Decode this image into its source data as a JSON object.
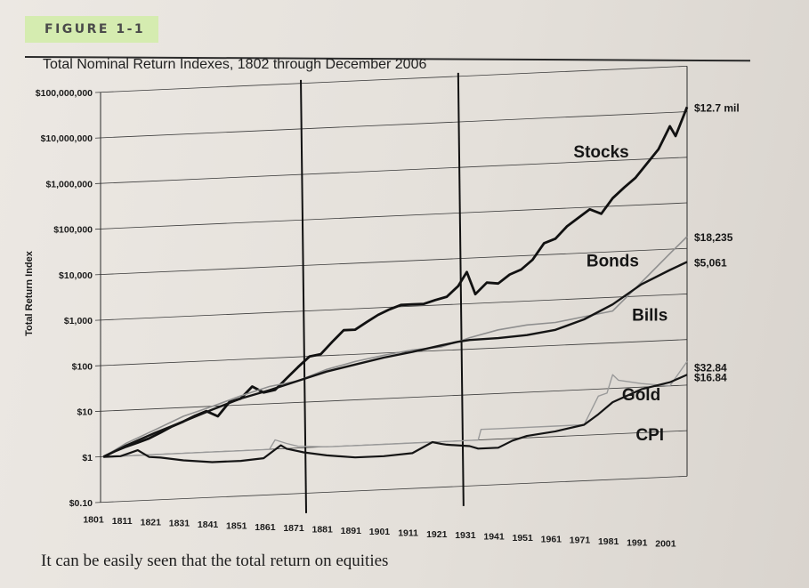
{
  "figure_label": "FIGURE 1-1",
  "caption": "It can be easily seen that the total return on equities",
  "chart_data": {
    "type": "line",
    "title": "Total Nominal Return Indexes, 1802 through December 2006",
    "ylabel": "Total Return Index",
    "xlabel": "",
    "y_scale": "log",
    "ylim": [
      0.1,
      100000000
    ],
    "xlim": [
      1801,
      2006
    ],
    "y_ticks": [
      "$100,000,000",
      "$10,000,000",
      "$1,000,000",
      "$100,000",
      "$10,000",
      "$1,000",
      "$100",
      "$10",
      "$1",
      "$0.10"
    ],
    "y_tick_values": [
      100000000,
      10000000,
      1000000,
      100000,
      10000,
      1000,
      100,
      10,
      1,
      0.1
    ],
    "x_ticks": [
      "1801",
      "1811",
      "1821",
      "1831",
      "1841",
      "1851",
      "1861",
      "1871",
      "1881",
      "1891",
      "1901",
      "1911",
      "1921",
      "1931",
      "1941",
      "1951",
      "1961",
      "1971",
      "1981",
      "1991",
      "2001"
    ],
    "x_tick_values": [
      1801,
      1811,
      1821,
      1831,
      1841,
      1851,
      1861,
      1871,
      1881,
      1891,
      1901,
      1911,
      1921,
      1931,
      1941,
      1951,
      1961,
      1971,
      1981,
      1991,
      2001
    ],
    "vertical_markers": [
      1871,
      1926
    ],
    "grid": true,
    "series": [
      {
        "name": "Stocks",
        "end_label": "$12.7 mil",
        "color": "#111111",
        "x": [
          1802,
          1806,
          1810,
          1814,
          1818,
          1822,
          1826,
          1830,
          1834,
          1838,
          1842,
          1846,
          1850,
          1854,
          1858,
          1862,
          1866,
          1870,
          1874,
          1878,
          1882,
          1886,
          1890,
          1894,
          1898,
          1902,
          1906,
          1910,
          1914,
          1918,
          1922,
          1926,
          1929,
          1932,
          1936,
          1940,
          1944,
          1948,
          1952,
          1956,
          1960,
          1964,
          1968,
          1972,
          1976,
          1980,
          1984,
          1988,
          1992,
          1996,
          2000,
          2002,
          2006
        ],
        "y": [
          1,
          1.3,
          1.6,
          1.9,
          2.3,
          3,
          4,
          5,
          6.5,
          8,
          6,
          12,
          14,
          25,
          18,
          20,
          35,
          60,
          100,
          110,
          200,
          350,
          350,
          500,
          700,
          900,
          1100,
          1100,
          1100,
          1300,
          1500,
          2500,
          5000,
          1600,
          2800,
          2600,
          4000,
          5000,
          8000,
          18000,
          22000,
          40000,
          60000,
          90000,
          70000,
          150000,
          250000,
          400000,
          800000,
          1600000,
          5000000,
          3000000,
          12700000
        ]
      },
      {
        "name": "Bonds",
        "end_label": "$18,235",
        "color": "#8f8f8f",
        "x": [
          1802,
          1810,
          1820,
          1830,
          1840,
          1850,
          1860,
          1870,
          1880,
          1890,
          1900,
          1910,
          1920,
          1926,
          1930,
          1940,
          1950,
          1960,
          1970,
          1980,
          1990,
          2000,
          2006
        ],
        "y": [
          1,
          1.9,
          3.5,
          6.5,
          10,
          16,
          24,
          30,
          50,
          70,
          90,
          110,
          120,
          150,
          180,
          250,
          300,
          320,
          400,
          500,
          2000,
          8000,
          18235
        ]
      },
      {
        "name": "Bills",
        "end_label": "$5,061",
        "color": "#151515",
        "x": [
          1802,
          1810,
          1820,
          1830,
          1840,
          1850,
          1860,
          1870,
          1880,
          1890,
          1900,
          1910,
          1920,
          1926,
          1930,
          1940,
          1950,
          1960,
          1970,
          1980,
          1990,
          2000,
          2006
        ],
        "y": [
          1,
          1.7,
          3,
          5,
          8.5,
          14,
          20,
          30,
          45,
          60,
          80,
          100,
          130,
          150,
          160,
          165,
          180,
          220,
          350,
          700,
          1800,
          3500,
          5061
        ]
      },
      {
        "name": "Gold",
        "end_label": "$32.84",
        "color": "#9a9a9a",
        "x": [
          1802,
          1810,
          1820,
          1830,
          1840,
          1850,
          1860,
          1862,
          1866,
          1870,
          1880,
          1890,
          1900,
          1910,
          1920,
          1930,
          1933,
          1934,
          1940,
          1950,
          1960,
          1970,
          1972,
          1975,
          1978,
          1980,
          1982,
          1990,
          2000,
          2006
        ],
        "y": [
          1,
          1,
          1,
          1,
          1,
          1,
          1,
          1.6,
          1.3,
          1.1,
          1,
          1,
          1,
          1,
          1,
          1,
          1,
          1.7,
          1.7,
          1.7,
          1.7,
          1.7,
          3,
          7,
          8,
          20,
          15,
          12,
          10,
          32.84
        ]
      },
      {
        "name": "CPI",
        "end_label": "$16.84",
        "color": "#151515",
        "x": [
          1802,
          1808,
          1814,
          1818,
          1822,
          1830,
          1840,
          1850,
          1858,
          1864,
          1866,
          1872,
          1880,
          1890,
          1900,
          1910,
          1917,
          1920,
          1922,
          1930,
          1933,
          1940,
          1945,
          1950,
          1960,
          1970,
          1975,
          1980,
          1990,
          2000,
          2006
        ],
        "y": [
          1,
          1,
          1.3,
          0.9,
          0.85,
          0.7,
          0.6,
          0.6,
          0.65,
          1.2,
          1.0,
          0.8,
          0.65,
          0.55,
          0.55,
          0.6,
          1.0,
          0.9,
          0.85,
          0.75,
          0.65,
          0.65,
          0.9,
          1.1,
          1.3,
          1.7,
          2.8,
          5,
          9,
          12,
          16.84
        ]
      }
    ]
  }
}
